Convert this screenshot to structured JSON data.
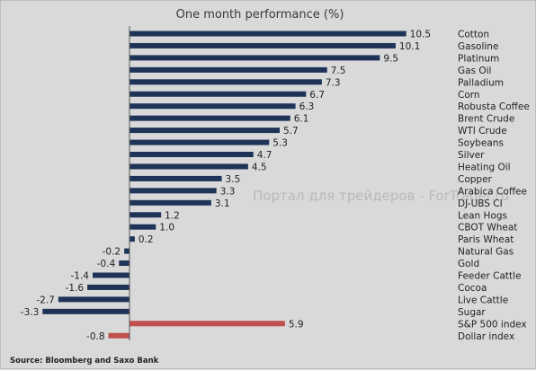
{
  "chart_data": {
    "type": "bar",
    "orientation": "horizontal",
    "title": "One month performance (%)",
    "categories": [
      "Cotton",
      "Gasoline",
      "Platinum",
      "Gas Oil",
      "Palladium",
      "Corn",
      "Robusta Coffee",
      "Brent Crude",
      "WTI Crude",
      "Soybeans",
      "Silver",
      "Heating Oil",
      "Copper",
      "Arabica Coffee",
      "DJ-UBS CI",
      "Lean Hogs",
      "CBOT Wheat",
      "Paris Wheat",
      "Natural Gas",
      "Gold",
      "Feeder Cattle",
      "Cocoa",
      "Live Cattle",
      "Sugar",
      "S&P 500 index",
      "Dollar index"
    ],
    "values": [
      10.5,
      10.1,
      9.5,
      7.5,
      7.3,
      6.7,
      6.3,
      6.1,
      5.7,
      5.3,
      4.7,
      4.5,
      3.5,
      3.3,
      3.1,
      1.2,
      1.0,
      0.2,
      -0.2,
      -0.4,
      -1.4,
      -1.6,
      -2.7,
      -3.3,
      5.9,
      -0.8
    ],
    "value_labels": [
      "10.5",
      "10.1",
      "9.5",
      "7.5",
      "7.3",
      "6.7",
      "6.3",
      "6.1",
      "5.7",
      "5.3",
      "4.7",
      "4.5",
      "3.5",
      "3.3",
      "3.1",
      "1.2",
      "1.0",
      "0.2",
      "-0.2",
      "-0.4",
      "-1.4",
      "-1.6",
      "-2.7",
      "-3.3",
      "5.9",
      "-0.8"
    ],
    "highlighted_categories": [
      "S&P 500 index",
      "Dollar index"
    ],
    "colors": {
      "commodity": "#1f3358",
      "index": "#c0504d",
      "axis": "#555555"
    },
    "source": "Source: Bloomberg and Saxo Bank",
    "watermark": "Портал для трейдеров - ForTrader.ru"
  }
}
